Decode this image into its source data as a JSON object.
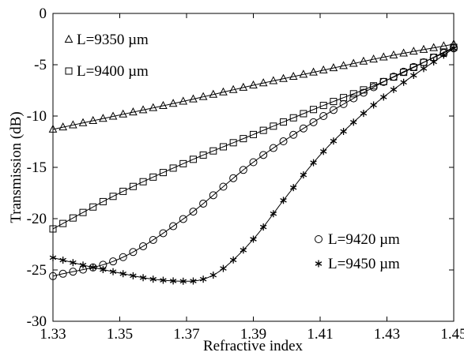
{
  "chart_data": {
    "type": "line",
    "title": "",
    "xlabel": "Refractive index",
    "ylabel": "Transmission (dB)",
    "xlim": [
      1.33,
      1.45
    ],
    "ylim": [
      -30,
      0
    ],
    "x_ticks": [
      1.33,
      1.35,
      1.37,
      1.39,
      1.41,
      1.43,
      1.45
    ],
    "x_tick_labels": [
      "1.33",
      "1.35",
      "1.37",
      "1.39",
      "1.41",
      "1.43",
      "1.45"
    ],
    "y_ticks": [
      0,
      -5,
      -10,
      -15,
      -20,
      -25,
      -30
    ],
    "y_tick_labels": [
      "0",
      "-5",
      "-10",
      "-15",
      "-20",
      "-25",
      "-30"
    ],
    "grid": false,
    "series": [
      {
        "name": "L=9350 µm",
        "marker": "triangle",
        "points": [
          [
            1.33,
            -11.3
          ],
          [
            1.35,
            -9.9
          ],
          [
            1.37,
            -8.5
          ],
          [
            1.39,
            -7.0
          ],
          [
            1.41,
            -5.6
          ],
          [
            1.43,
            -4.2
          ],
          [
            1.45,
            -3.0
          ]
        ]
      },
      {
        "name": "L=9400 µm",
        "marker": "square",
        "points": [
          [
            1.33,
            -21.0
          ],
          [
            1.35,
            -17.5
          ],
          [
            1.37,
            -14.5
          ],
          [
            1.39,
            -11.8
          ],
          [
            1.41,
            -9.1
          ],
          [
            1.43,
            -6.5
          ],
          [
            1.45,
            -3.3
          ]
        ]
      },
      {
        "name": "L=9420 µm",
        "marker": "circle",
        "points": [
          [
            1.33,
            -25.6
          ],
          [
            1.35,
            -23.9
          ],
          [
            1.37,
            -19.8
          ],
          [
            1.39,
            -14.5
          ],
          [
            1.41,
            -10.2
          ],
          [
            1.43,
            -6.5
          ],
          [
            1.45,
            -3.4
          ]
        ]
      },
      {
        "name": "L=9450 µm",
        "marker": "star",
        "points": [
          [
            1.33,
            -23.8
          ],
          [
            1.34,
            -24.6
          ],
          [
            1.35,
            -25.3
          ],
          [
            1.36,
            -25.9
          ],
          [
            1.37,
            -26.1
          ],
          [
            1.375,
            -25.9
          ],
          [
            1.38,
            -25.1
          ],
          [
            1.39,
            -22.0
          ],
          [
            1.4,
            -17.8
          ],
          [
            1.41,
            -13.8
          ],
          [
            1.42,
            -10.6
          ],
          [
            1.43,
            -7.9
          ],
          [
            1.45,
            -3.4
          ]
        ]
      }
    ],
    "legend_upper": {
      "placement": "top-left",
      "entries": [
        0,
        1
      ]
    },
    "legend_lower": {
      "placement": "lower-right",
      "entries": [
        2,
        3
      ]
    }
  }
}
